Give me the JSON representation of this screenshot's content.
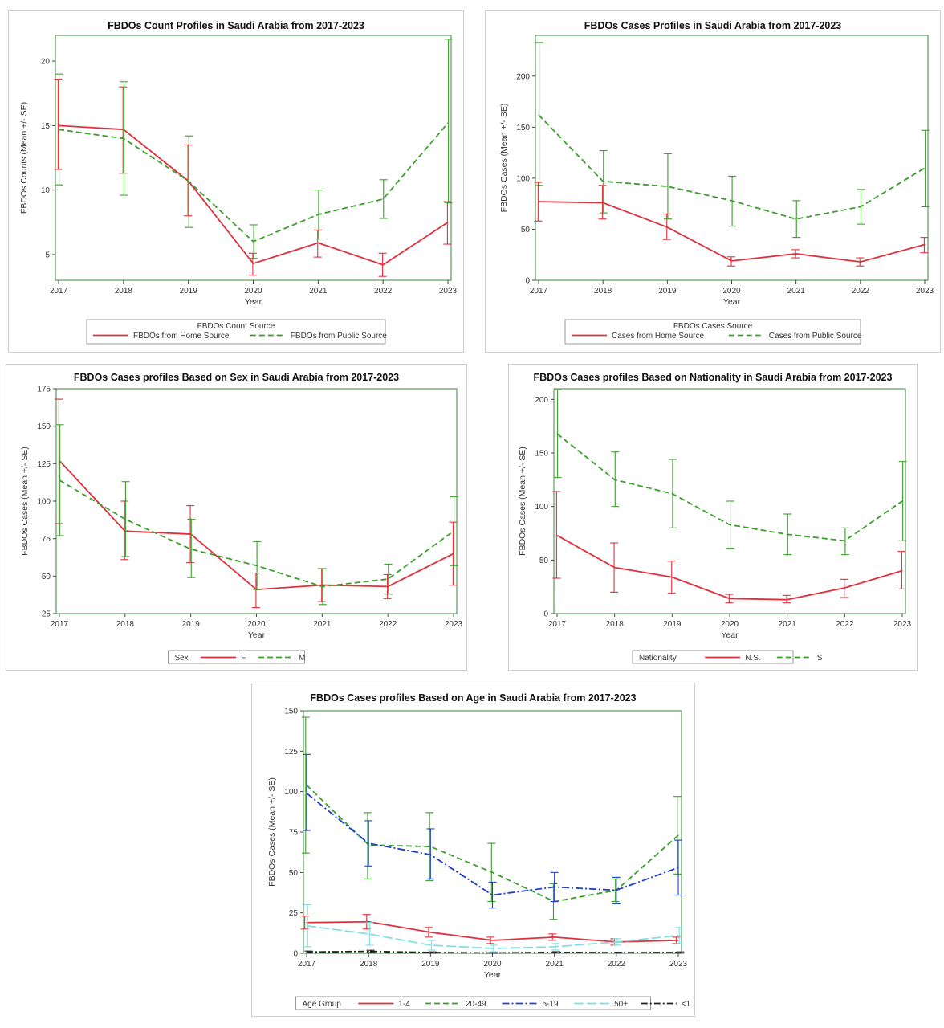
{
  "chart_data": [
    {
      "type": "line",
      "title": "FBDOs Count Profiles in Saudi Arabia from 2017-2023",
      "xlabel": "Year",
      "ylabel": "FBDOs Counts (Mean +/- SE)",
      "x": [
        2017,
        2018,
        2019,
        2020,
        2021,
        2022,
        2023
      ],
      "ylim": [
        3,
        22
      ],
      "yticks": [
        5,
        10,
        15,
        20
      ],
      "legend_title": "FBDOs Count Source",
      "legend_position": "bottom",
      "series": [
        {
          "name": "FBDOs from Home Source",
          "color": "#e0303c",
          "dash": "solid",
          "values": [
            15.0,
            14.7,
            10.7,
            4.3,
            5.9,
            4.2,
            7.5
          ],
          "err_low": [
            11.6,
            11.3,
            8.0,
            3.4,
            4.8,
            3.3,
            5.8
          ],
          "err_high": [
            18.6,
            18.0,
            13.5,
            5.1,
            6.9,
            5.1,
            9.1
          ]
        },
        {
          "name": "FBDOs from Public Source",
          "color": "#3aa02a",
          "dash": "7,4",
          "values": [
            14.7,
            14.0,
            10.7,
            6.0,
            8.1,
            9.3,
            15.2
          ],
          "err_low": [
            10.4,
            9.6,
            7.1,
            4.7,
            6.2,
            7.8,
            9.0
          ],
          "err_high": [
            19.0,
            18.4,
            14.2,
            7.3,
            10.0,
            10.8,
            21.7
          ]
        }
      ]
    },
    {
      "type": "line",
      "title": "FBDOs Cases  Profiles in Saudi Arabia  from 2017-2023",
      "xlabel": "Year",
      "ylabel": "FBDOs Cases  (Mean +/- SE)",
      "x": [
        2017,
        2018,
        2019,
        2020,
        2021,
        2022,
        2023
      ],
      "ylim": [
        0,
        240
      ],
      "yticks": [
        0,
        50,
        100,
        150,
        200
      ],
      "legend_title": "FBDOs Cases Source",
      "legend_position": "bottom",
      "series": [
        {
          "name": "Cases from Home Source",
          "color": "#e0303c",
          "dash": "solid",
          "values": [
            77,
            76,
            52,
            19,
            26,
            18,
            35
          ],
          "err_low": [
            58,
            60,
            40,
            14,
            22,
            14,
            27
          ],
          "err_high": [
            96,
            93,
            65,
            23,
            30,
            22,
            42
          ]
        },
        {
          "name": "Cases from Public Source",
          "color": "#3aa02a",
          "dash": "7,4",
          "values": [
            162,
            97,
            92,
            78,
            60,
            72,
            110
          ],
          "err_low": [
            93,
            66,
            60,
            53,
            42,
            55,
            72
          ],
          "err_high": [
            233,
            127,
            124,
            102,
            78,
            89,
            147
          ]
        }
      ]
    },
    {
      "type": "line",
      "title": "FBDOs Cases profiles Based on Sex in Saudi Arabia  from 2017-2023",
      "xlabel": "Year",
      "ylabel": "FBDOs Cases  (Mean +/- SE)",
      "x": [
        2017,
        2018,
        2019,
        2020,
        2021,
        2022,
        2023
      ],
      "ylim": [
        25,
        175
      ],
      "yticks": [
        25,
        50,
        75,
        100,
        125,
        150,
        175
      ],
      "legend_title": "Sex",
      "legend_position": "bottom",
      "series": [
        {
          "name": "F",
          "color": "#e0303c",
          "dash": "solid",
          "values": [
            127,
            80,
            78,
            41,
            44,
            43,
            65
          ],
          "err_low": [
            85,
            61,
            59,
            29,
            33,
            35,
            44
          ],
          "err_high": [
            168,
            100,
            97,
            52,
            55,
            51,
            86
          ]
        },
        {
          "name": "M",
          "color": "#3aa02a",
          "dash": "7,4",
          "values": [
            114,
            88,
            68,
            57,
            43,
            48,
            80
          ],
          "err_low": [
            77,
            63,
            49,
            41,
            31,
            38,
            57
          ],
          "err_high": [
            151,
            113,
            88,
            73,
            55,
            58,
            103
          ]
        }
      ]
    },
    {
      "type": "line",
      "title": "FBDOs Cases profiles Based on Nationality  in Saudi Arabia  from 2017-2023",
      "xlabel": "Year",
      "ylabel": "FBDOs Cases  (Mean +/- SE)",
      "x": [
        2017,
        2018,
        2019,
        2020,
        2021,
        2022,
        2023
      ],
      "ylim": [
        0,
        210
      ],
      "yticks": [
        0,
        50,
        100,
        150,
        200
      ],
      "legend_title": "Nationality",
      "legend_position": "bottom",
      "series": [
        {
          "name": "N.S.",
          "color": "#e0303c",
          "dash": "solid",
          "values": [
            73,
            43,
            34,
            14,
            13,
            24,
            40
          ],
          "err_low": [
            33,
            20,
            19,
            10,
            10,
            15,
            23
          ],
          "err_high": [
            114,
            66,
            49,
            18,
            17,
            32,
            58
          ]
        },
        {
          "name": "S",
          "color": "#3aa02a",
          "dash": "7,4",
          "values": [
            168,
            125,
            112,
            83,
            74,
            68,
            105
          ],
          "err_low": [
            127,
            100,
            80,
            61,
            55,
            55,
            68
          ],
          "err_high": [
            209,
            151,
            144,
            105,
            93,
            80,
            142
          ]
        }
      ]
    },
    {
      "type": "line",
      "title": "FBDOs Cases profiles Based on Age in Saudi Arabia  from 2017-2023",
      "xlabel": "Year",
      "ylabel": "FBDOs Cases  (Mean +/- SE)",
      "x": [
        2017,
        2018,
        2019,
        2020,
        2021,
        2022,
        2023
      ],
      "ylim": [
        0,
        150
      ],
      "yticks": [
        0,
        25,
        50,
        75,
        100,
        125,
        150
      ],
      "legend_title": "Age Group",
      "legend_position": "bottom",
      "series": [
        {
          "name": "1-4",
          "color": "#e0303c",
          "dash": "solid",
          "values": [
            19,
            19.5,
            13,
            8,
            10,
            7,
            8
          ],
          "err_low": [
            15,
            15,
            10,
            6,
            8,
            5,
            6
          ],
          "err_high": [
            23,
            24,
            16,
            10,
            12,
            9,
            10
          ]
        },
        {
          "name": "20-49",
          "color": "#3aa02a",
          "dash": "7,4",
          "values": [
            104,
            67,
            66,
            50,
            32,
            39,
            73
          ],
          "err_low": [
            62,
            46,
            45,
            32,
            21,
            32,
            49
          ],
          "err_high": [
            146,
            87,
            87,
            68,
            43,
            46,
            97
          ]
        },
        {
          "name": "5-19",
          "color": "#2040d0",
          "dash": "9,3,2,3",
          "values": [
            99,
            68,
            61,
            36,
            41,
            39,
            53
          ],
          "err_low": [
            76,
            54,
            46,
            28,
            32,
            31,
            36
          ],
          "err_high": [
            123,
            82,
            77,
            44,
            50,
            47,
            70
          ]
        },
        {
          "name": "50+",
          "color": "#7fe0e0",
          "dash": "12,4",
          "values": [
            17,
            12,
            5,
            3,
            4,
            7,
            11
          ],
          "err_low": [
            4,
            5,
            2,
            1,
            2,
            5,
            6
          ],
          "err_high": [
            30,
            19,
            8,
            5,
            6,
            9,
            16
          ]
        },
        {
          "name": "<1",
          "color": "#222222",
          "dash": "8,3,2,3",
          "values": [
            0.8,
            1.2,
            0.5,
            0.2,
            0.6,
            0.4,
            0.5
          ],
          "err_low": [
            0.2,
            0.5,
            0.1,
            0,
            0.2,
            0.1,
            0.1
          ],
          "err_high": [
            1.4,
            1.9,
            0.9,
            0.4,
            1.0,
            0.7,
            0.9
          ]
        }
      ]
    }
  ]
}
